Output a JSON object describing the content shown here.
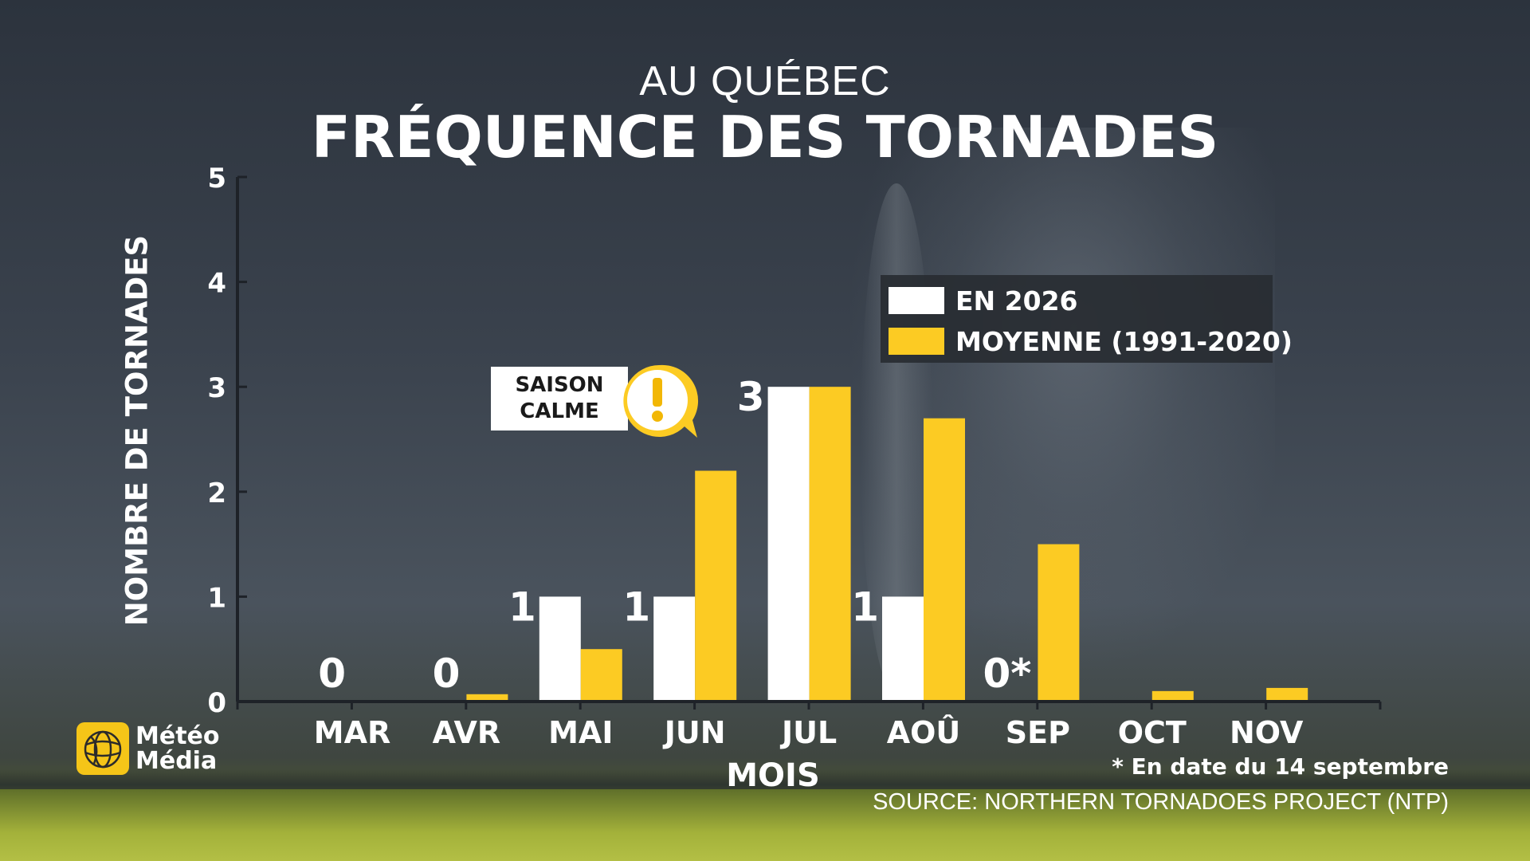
{
  "header": {
    "subtitle": "AU QUÉBEC",
    "title": "FRÉQUENCE DES TORNADES"
  },
  "callout": {
    "line1": "SAISON",
    "line2": "CALME",
    "icon": "warning-exclamation-icon"
  },
  "footnote": "* En date du 14 septembre",
  "source": "SOURCE: NORTHERN TORNADOES PROJECT (NTP)",
  "logo": {
    "line1": "Météo",
    "line2": "Média",
    "icon": "globe-logo-icon"
  },
  "colors": {
    "current": "#ffffff",
    "average": "#fccb23",
    "axis": "#1e2228",
    "text": "#ffffff"
  },
  "chart_data": {
    "type": "bar",
    "title": "FRÉQUENCE DES TORNADES",
    "subtitle": "AU QUÉBEC",
    "xlabel": "MOIS",
    "ylabel": "NOMBRE DE TORNADES",
    "ylim": [
      0,
      5
    ],
    "yticks": [
      0,
      1,
      2,
      3,
      4,
      5
    ],
    "categories": [
      "MAR",
      "AVR",
      "MAI",
      "JUN",
      "JUL",
      "AOÛ",
      "SEP",
      "OCT",
      "NOV"
    ],
    "series": [
      {
        "name": "EN 2026",
        "values": [
          0,
          0,
          1,
          1,
          3,
          1,
          0,
          null,
          null
        ],
        "labels": [
          "0",
          "0",
          "1",
          "1",
          "3",
          "1",
          "0*",
          "",
          ""
        ]
      },
      {
        "name": "MOYENNE (1991-2020)",
        "values": [
          0,
          0.07,
          0.5,
          2.2,
          3,
          2.7,
          1.5,
          0.1,
          0.13
        ]
      }
    ],
    "legend_position": "top-right",
    "grid": false
  }
}
